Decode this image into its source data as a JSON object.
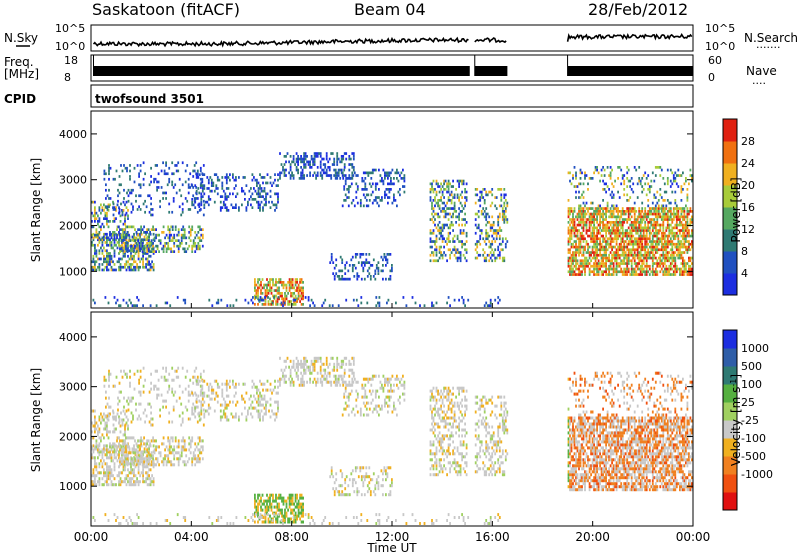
{
  "header": {
    "station": "Saskatoon (fitACF)",
    "beam": "Beam 04",
    "date": "28/Feb/2012"
  },
  "noise_panel": {
    "left_label": "N.Sky",
    "right_label": "N.Search",
    "right_legend_dots": ".......",
    "ticks": [
      "10^5",
      "10^0"
    ]
  },
  "freq_panel": {
    "left_label_1": "Freq.",
    "left_label_2": "[MHz]",
    "right_label": "Nave",
    "right_legend_dots": "....",
    "left_ticks": [
      "18",
      "8"
    ],
    "right_ticks": [
      "60",
      "0"
    ]
  },
  "cpid_panel": {
    "label": "CPID",
    "program": "twofsound 3501"
  },
  "chart_data": [
    {
      "type": "heatmap",
      "name": "power",
      "ylabel": "Slant Range [km]",
      "ylim": [
        200,
        4500
      ],
      "yticks": [
        "1000",
        "2000",
        "3000",
        "4000"
      ],
      "xlim_hours": [
        0,
        24
      ],
      "colorbar": {
        "label": "Power [dB]",
        "ticks": [
          "4",
          "8",
          "12",
          "16",
          "20",
          "24",
          "28"
        ],
        "colors": [
          "#1c2ee0",
          "#2050c0",
          "#2f7a73",
          "#55a860",
          "#a8cc3a",
          "#f0b020",
          "#f07010",
          "#e02010"
        ]
      },
      "data_gaps_hours": [
        [
          15.1,
          15.3
        ],
        [
          16.6,
          19.0
        ]
      ]
    },
    {
      "type": "heatmap",
      "name": "velocity",
      "ylabel": "Slant Range [km]",
      "ylim": [
        200,
        4500
      ],
      "yticks": [
        "1000",
        "2000",
        "3000",
        "4000"
      ],
      "xlim_hours": [
        0,
        24
      ],
      "xlabel": "Time UT",
      "xticks": [
        "00:00",
        "04:00",
        "08:00",
        "12:00",
        "16:00",
        "20:00",
        "00:00"
      ],
      "colorbar": {
        "label": "Velocity",
        "unit": "[m s",
        "unit_exp": "-1",
        "unit_close": "]",
        "ticks": [
          "1000",
          "500",
          "100",
          "25",
          "-25",
          "-100",
          "-500",
          "-1000"
        ],
        "colors": [
          "#1c2ee0",
          "#2f5ea8",
          "#2f7a73",
          "#55b040",
          "#a0d060",
          "#c8c8c8",
          "#f0b020",
          "#f08020",
          "#f05010",
          "#e01010"
        ]
      }
    }
  ]
}
